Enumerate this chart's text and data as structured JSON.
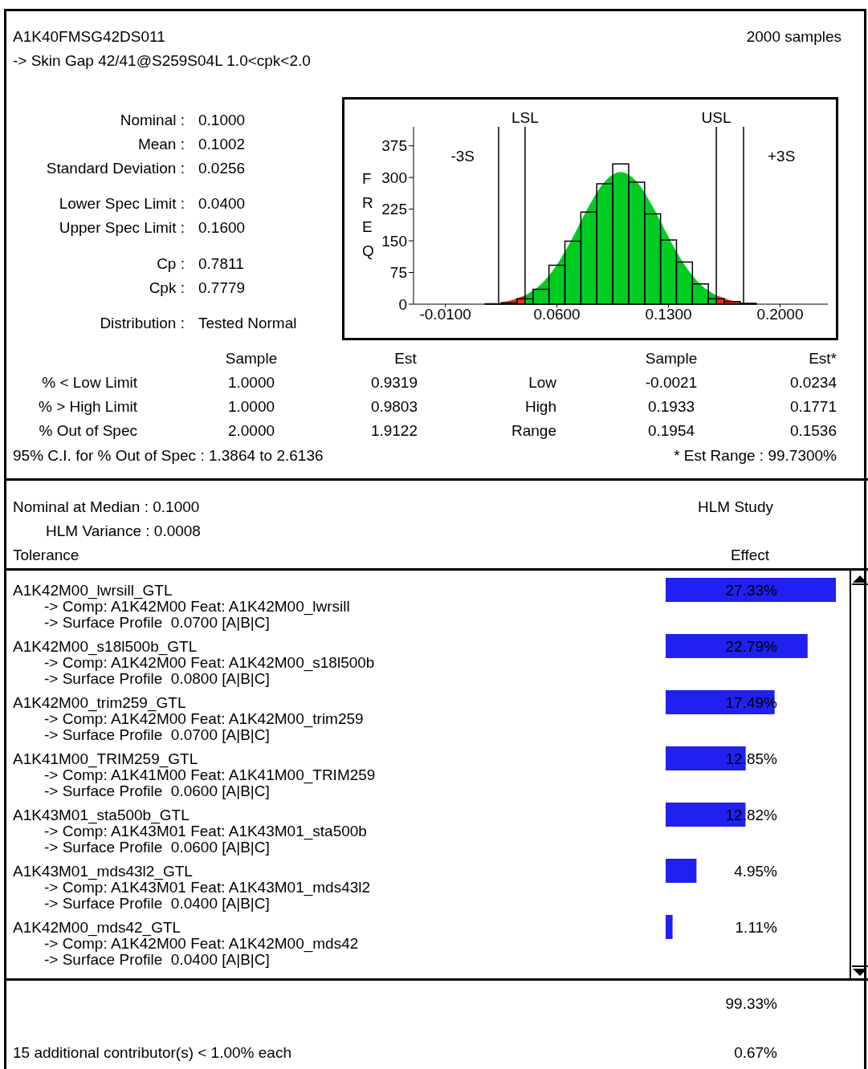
{
  "chart_data": [
    {
      "type": "other",
      "title": "A1K40FMSG42DS011",
      "subtitle": "-> Skin Gap 42/41@S259S04L 1.0<cpk<2.0",
      "annotations": [
        "2000 samples",
        "Nominal :",
        "0.1000",
        "Mean :",
        "0.1002",
        "Standard Deviation :",
        "0.0256",
        "Lower Spec Limit :",
        "0.0400",
        "Upper Spec Limit :",
        "0.1600",
        "Cp :",
        "0.7811",
        "Cpk :",
        "0.7779",
        "Distribution :",
        "Tested Normal",
        "Sample",
        "Est",
        "Sample",
        "Est*",
        "% < Low Limit",
        "1.0000",
        "0.9319",
        "Low",
        "-0.0021",
        "0.0234",
        "% > High Limit",
        "1.0000",
        "0.9803",
        "High",
        "0.1933",
        "0.1771",
        "% Out of Spec",
        "2.0000",
        "1.9122",
        "Range",
        "0.1954",
        "0.1536",
        "95% C.I. for % Out of Spec : 1.3864 to 2.6136",
        "* Est Range : 99.7300%"
      ]
    },
    {
      "type": "histogram",
      "ylabel": "FREQ",
      "color": "#000000",
      "bins": [
        0.015,
        0.025,
        0.035,
        0.045,
        0.055,
        0.065,
        0.075,
        0.085,
        0.095,
        0.105,
        0.115,
        0.125,
        0.135,
        0.145,
        0.155,
        0.165,
        0.175,
        0.185
      ],
      "values": [
        1,
        3,
        13,
        35,
        92,
        149,
        218,
        285,
        332,
        289,
        214,
        152,
        100,
        48,
        13,
        6,
        2
      ],
      "series": [
        {
          "type": "area",
          "color": "#e03010",
          "x": [
            0.025,
            0.03,
            0.035,
            0.04
          ],
          "values": [
            4,
            7,
            13,
            20
          ]
        },
        {
          "type": "area",
          "color": "#00cc22",
          "x": [
            0.04,
            0.05,
            0.06,
            0.07,
            0.08,
            0.09,
            0.1,
            0.11,
            0.12,
            0.13,
            0.14,
            0.15,
            0.16
          ],
          "values": [
            20,
            46,
            92,
            157,
            230,
            289,
            312,
            289,
            230,
            157,
            92,
            46,
            20
          ]
        },
        {
          "type": "area",
          "color": "#e03010",
          "x": [
            0.16,
            0.165,
            0.17,
            0.175
          ],
          "values": [
            20,
            13,
            7,
            4
          ]
        }
      ],
      "xlim": [
        -0.03,
        0.23
      ],
      "xticks": [
        {
          "value": -0.01,
          "label": "-0.0100"
        },
        {
          "value": 0.06,
          "label": "0.0600"
        },
        {
          "value": 0.13,
          "label": "0.1300"
        },
        {
          "value": 0.2,
          "label": "0.2000"
        }
      ],
      "ylim": [
        0,
        420
      ],
      "yticks": [
        0,
        75,
        150,
        225,
        300,
        375
      ],
      "ref_lines": [
        {
          "axis": "x",
          "value": 0.0234,
          "label": "-3S"
        },
        {
          "axis": "x",
          "value": 0.04,
          "label": "LSL"
        },
        {
          "axis": "x",
          "value": 0.16,
          "label": "USL"
        },
        {
          "axis": "x",
          "value": 0.1771,
          "label": "+3S"
        }
      ]
    },
    {
      "type": "bar",
      "orientation": "horizontal",
      "title": "HLM Study",
      "xlabel": "Effect",
      "ylabel": "Tolerance",
      "color": "#2020f0",
      "tick_labels": "y",
      "categories": [
        "A1K42M00_lwrsill_GTL\n-> Comp: A1K42M00 Feat: A1K42M00_lwrsill\n-> Surface Profile  0.0700 [A|B|C]",
        "A1K42M00_s18l500b_GTL\n-> Comp: A1K42M00 Feat: A1K42M00_s18l500b\n-> Surface Profile  0.0800 [A|B|C]",
        "A1K42M00_trim259_GTL\n-> Comp: A1K42M00 Feat: A1K42M00_trim259\n-> Surface Profile  0.0700 [A|B|C]",
        "A1K41M00_TRIM259_GTL\n-> Comp: A1K41M00 Feat: A1K41M00_TRIM259\n-> Surface Profile  0.0600 [A|B|C]",
        "A1K43M01_sta500b_GTL\n-> Comp: A1K43M01 Feat: A1K43M01_sta500b\n-> Surface Profile  0.0600 [A|B|C]",
        "A1K43M01_mds43l2_GTL\n-> Comp: A1K43M01 Feat: A1K43M01_mds43l2\n-> Surface Profile  0.0400 [A|B|C]",
        "A1K42M00_mds42_GTL\n-> Comp: A1K42M00 Feat: A1K42M00_mds42\n-> Surface Profile  0.0400 [A|B|C]"
      ],
      "values": [
        27.33,
        22.79,
        17.49,
        12.85,
        12.82,
        4.95,
        1.11
      ],
      "value_labels": [
        "27.33%",
        "22.79%",
        "17.49%",
        "12.85%",
        "12.82%",
        "4.95%",
        "1.11%"
      ],
      "annotations": [
        "Nominal at Median : 0.1000",
        "HLM Variance : 0.0008",
        "99.33%",
        "15 additional contributor(s) < 1.00% each",
        "0.67%"
      ]
    }
  ]
}
